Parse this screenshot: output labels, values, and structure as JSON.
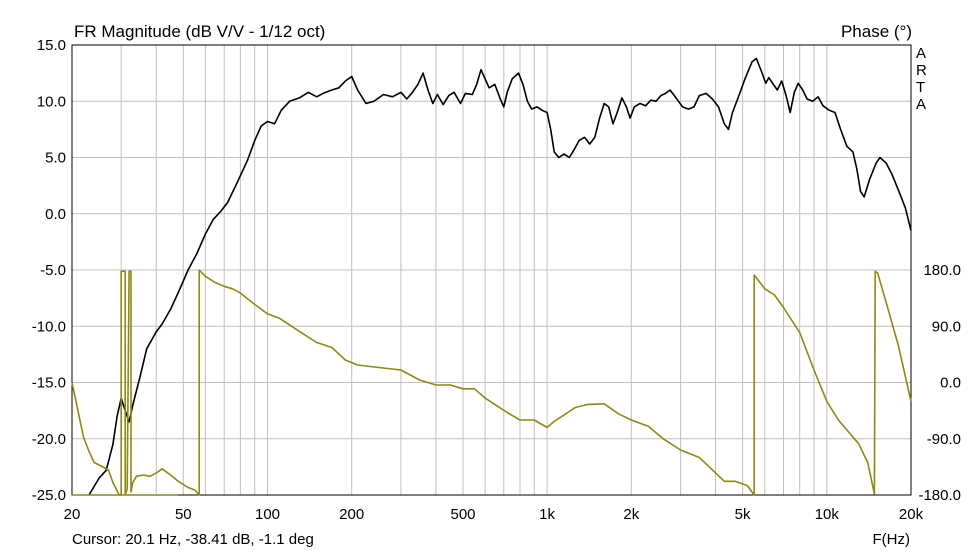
{
  "chart_data": {
    "type": "line",
    "title": "FR Magnitude (dB V/V - 1/12 oct)",
    "right_title": "Phase (°)",
    "watermark": "ARTA",
    "xlabel": "F(Hz)",
    "x_scale": "log",
    "xlim": [
      20,
      20000
    ],
    "ylim": [
      -25,
      15
    ],
    "y2lim": [
      -180,
      180
    ],
    "grid": true,
    "x_ticks": [
      {
        "v": 20,
        "label": "20"
      },
      {
        "v": 50,
        "label": "50"
      },
      {
        "v": 100,
        "label": "100"
      },
      {
        "v": 200,
        "label": "200"
      },
      {
        "v": 500,
        "label": "500"
      },
      {
        "v": 1000,
        "label": "1k"
      },
      {
        "v": 2000,
        "label": "2k"
      },
      {
        "v": 5000,
        "label": "5k"
      },
      {
        "v": 10000,
        "label": "10k"
      },
      {
        "v": 20000,
        "label": "20k"
      }
    ],
    "y_ticks": [
      "15.0",
      "10.0",
      "5.0",
      "0.0",
      "-5.0",
      "-10.0",
      "-15.0",
      "-20.0",
      "-25.0"
    ],
    "y_tick_values": [
      15,
      10,
      5,
      0,
      -5,
      -10,
      -15,
      -20,
      -25
    ],
    "y2_ticks": [
      "180.0",
      "90.0",
      "0.0",
      "-90.0",
      "-180.0"
    ],
    "y2_tick_values": [
      180,
      90,
      0,
      -90,
      -180
    ],
    "colors": {
      "magnitude": "#000000",
      "phase": "#8c8a14",
      "grid": "#c0c0c0"
    },
    "series": [
      {
        "axis": "left",
        "values_xy": [
          [
            23,
            -25
          ],
          [
            25,
            -23.5
          ],
          [
            26.5,
            -22.8
          ],
          [
            28,
            -20.5
          ],
          [
            29,
            -18
          ],
          [
            30,
            -16.4
          ],
          [
            31,
            -17.5
          ],
          [
            32,
            -18.5
          ],
          [
            33,
            -17
          ],
          [
            35,
            -14.5
          ],
          [
            37,
            -12
          ],
          [
            40,
            -10.5
          ],
          [
            42,
            -9.8
          ],
          [
            45,
            -8.5
          ],
          [
            48,
            -7
          ],
          [
            52,
            -5
          ],
          [
            56,
            -3.5
          ],
          [
            60,
            -1.8
          ],
          [
            64,
            -0.5
          ],
          [
            68,
            0.2
          ],
          [
            72,
            1
          ],
          [
            78,
            2.8
          ],
          [
            85,
            4.8
          ],
          [
            90,
            6.5
          ],
          [
            95,
            7.8
          ],
          [
            100,
            8.2
          ],
          [
            106,
            8
          ],
          [
            112,
            9.2
          ],
          [
            120,
            10
          ],
          [
            130,
            10.3
          ],
          [
            140,
            10.8
          ],
          [
            150,
            10.4
          ],
          [
            158,
            10.7
          ],
          [
            170,
            11
          ],
          [
            180,
            11.2
          ],
          [
            190,
            11.8
          ],
          [
            200,
            12.2
          ],
          [
            210,
            11
          ],
          [
            225,
            9.8
          ],
          [
            240,
            10
          ],
          [
            260,
            10.6
          ],
          [
            280,
            10.4
          ],
          [
            300,
            10.8
          ],
          [
            315,
            10.2
          ],
          [
            330,
            10.8
          ],
          [
            345,
            11.5
          ],
          [
            360,
            12.5
          ],
          [
            375,
            11
          ],
          [
            390,
            9.8
          ],
          [
            405,
            10.6
          ],
          [
            425,
            9.7
          ],
          [
            445,
            10.5
          ],
          [
            465,
            10.8
          ],
          [
            490,
            9.8
          ],
          [
            510,
            10.7
          ],
          [
            540,
            10.6
          ],
          [
            560,
            11.5
          ],
          [
            580,
            12.8
          ],
          [
            600,
            12
          ],
          [
            620,
            11.2
          ],
          [
            650,
            11.5
          ],
          [
            680,
            10.2
          ],
          [
            700,
            9.5
          ],
          [
            720,
            10.8
          ],
          [
            750,
            12
          ],
          [
            790,
            12.5
          ],
          [
            820,
            11.5
          ],
          [
            850,
            10
          ],
          [
            880,
            9.3
          ],
          [
            920,
            9.5
          ],
          [
            960,
            9.2
          ],
          [
            1000,
            9
          ],
          [
            1030,
            7.5
          ],
          [
            1060,
            5.5
          ],
          [
            1100,
            5
          ],
          [
            1150,
            5.3
          ],
          [
            1200,
            5
          ],
          [
            1250,
            5.7
          ],
          [
            1300,
            6.5
          ],
          [
            1360,
            6.8
          ],
          [
            1420,
            6.2
          ],
          [
            1480,
            6.8
          ],
          [
            1540,
            8.5
          ],
          [
            1600,
            9.8
          ],
          [
            1660,
            9.5
          ],
          [
            1720,
            8
          ],
          [
            1780,
            9
          ],
          [
            1850,
            10.3
          ],
          [
            1920,
            9.5
          ],
          [
            1980,
            8.5
          ],
          [
            2050,
            9.5
          ],
          [
            2150,
            9.8
          ],
          [
            2250,
            9.6
          ],
          [
            2350,
            10.1
          ],
          [
            2450,
            10
          ],
          [
            2550,
            10.5
          ],
          [
            2650,
            10.7
          ],
          [
            2750,
            11
          ],
          [
            2850,
            10.5
          ],
          [
            2950,
            10
          ],
          [
            3050,
            9.5
          ],
          [
            3200,
            9.3
          ],
          [
            3350,
            9.5
          ],
          [
            3500,
            10.5
          ],
          [
            3700,
            10.7
          ],
          [
            3900,
            10.2
          ],
          [
            4100,
            9.5
          ],
          [
            4300,
            8
          ],
          [
            4450,
            7.5
          ],
          [
            4600,
            9
          ],
          [
            4850,
            10.5
          ],
          [
            5100,
            12
          ],
          [
            5400,
            13.5
          ],
          [
            5600,
            13.8
          ],
          [
            5850,
            12.6
          ],
          [
            6050,
            11.6
          ],
          [
            6200,
            12.1
          ],
          [
            6400,
            11.6
          ],
          [
            6650,
            11
          ],
          [
            6900,
            11.8
          ],
          [
            7150,
            10.5
          ],
          [
            7400,
            9
          ],
          [
            7650,
            10.8
          ],
          [
            7900,
            11.6
          ],
          [
            8200,
            11
          ],
          [
            8500,
            10.2
          ],
          [
            8900,
            10
          ],
          [
            9300,
            10.4
          ],
          [
            9700,
            9.6
          ],
          [
            10200,
            9.2
          ],
          [
            10700,
            9
          ],
          [
            11200,
            7.5
          ],
          [
            11800,
            6
          ],
          [
            12400,
            5.5
          ],
          [
            12800,
            4
          ],
          [
            13200,
            2
          ],
          [
            13600,
            1.5
          ],
          [
            14200,
            3
          ],
          [
            15000,
            4.5
          ],
          [
            15500,
            5
          ],
          [
            16300,
            4.5
          ],
          [
            17100,
            3.5
          ],
          [
            18100,
            2
          ],
          [
            19100,
            0.5
          ],
          [
            20000,
            -1.5
          ]
        ]
      },
      {
        "axis": "right",
        "values_xy": [
          [
            20,
            0
          ],
          [
            21,
            -45
          ],
          [
            22,
            -88
          ],
          [
            23,
            -110
          ],
          [
            24,
            -128
          ],
          [
            25,
            -132
          ],
          [
            27,
            -140
          ],
          [
            28,
            -160
          ],
          [
            29.5,
            -180
          ],
          [
            30,
            -180
          ],
          [
            30,
            178
          ],
          [
            31,
            178
          ],
          [
            31,
            -180
          ],
          [
            31.5,
            -170
          ],
          [
            32,
            178
          ],
          [
            32.5,
            178
          ],
          [
            32.5,
            -175
          ],
          [
            33,
            -160
          ],
          [
            34,
            -150
          ],
          [
            36,
            -148
          ],
          [
            38,
            -150
          ],
          [
            40,
            -145
          ],
          [
            42,
            -138
          ],
          [
            45,
            -148
          ],
          [
            48,
            -158
          ],
          [
            52,
            -168
          ],
          [
            55,
            -172
          ],
          [
            57,
            -180
          ],
          [
            57,
            180
          ],
          [
            60,
            170
          ],
          [
            65,
            160
          ],
          [
            70,
            154
          ],
          [
            75,
            150
          ],
          [
            80,
            143
          ],
          [
            90,
            125
          ],
          [
            100,
            110
          ],
          [
            110,
            103
          ],
          [
            130,
            82
          ],
          [
            150,
            64
          ],
          [
            170,
            56
          ],
          [
            190,
            36
          ],
          [
            210,
            28
          ],
          [
            250,
            24
          ],
          [
            300,
            20
          ],
          [
            350,
            4
          ],
          [
            400,
            -4
          ],
          [
            450,
            -4
          ],
          [
            500,
            -10
          ],
          [
            550,
            -10
          ],
          [
            600,
            -25
          ],
          [
            650,
            -35
          ],
          [
            720,
            -48
          ],
          [
            800,
            -60
          ],
          [
            900,
            -60
          ],
          [
            1000,
            -72
          ],
          [
            1060,
            -62
          ],
          [
            1150,
            -52
          ],
          [
            1260,
            -40
          ],
          [
            1400,
            -35
          ],
          [
            1600,
            -34
          ],
          [
            1800,
            -50
          ],
          [
            2000,
            -60
          ],
          [
            2300,
            -70
          ],
          [
            2600,
            -90
          ],
          [
            3000,
            -108
          ],
          [
            3500,
            -120
          ],
          [
            3800,
            -135
          ],
          [
            4300,
            -158
          ],
          [
            4700,
            -158
          ],
          [
            5200,
            -165
          ],
          [
            5500,
            -180
          ],
          [
            5500,
            172
          ],
          [
            6000,
            150
          ],
          [
            6500,
            140
          ],
          [
            7000,
            120
          ],
          [
            8000,
            80
          ],
          [
            9000,
            20
          ],
          [
            10000,
            -30
          ],
          [
            11000,
            -60
          ],
          [
            12000,
            -80
          ],
          [
            13000,
            -98
          ],
          [
            14000,
            -128
          ],
          [
            14800,
            -178
          ],
          [
            14900,
            178
          ],
          [
            15200,
            175
          ],
          [
            16500,
            120
          ],
          [
            18000,
            60
          ],
          [
            20000,
            -30
          ]
        ]
      },
      {
        "axis": "right",
        "values_xy": [
          [
            20,
            -180
          ],
          [
            48,
            -180
          ]
        ]
      }
    ]
  },
  "cursor_readout": "Cursor: 20.1 Hz, -38.41 dB, -1.1 deg"
}
